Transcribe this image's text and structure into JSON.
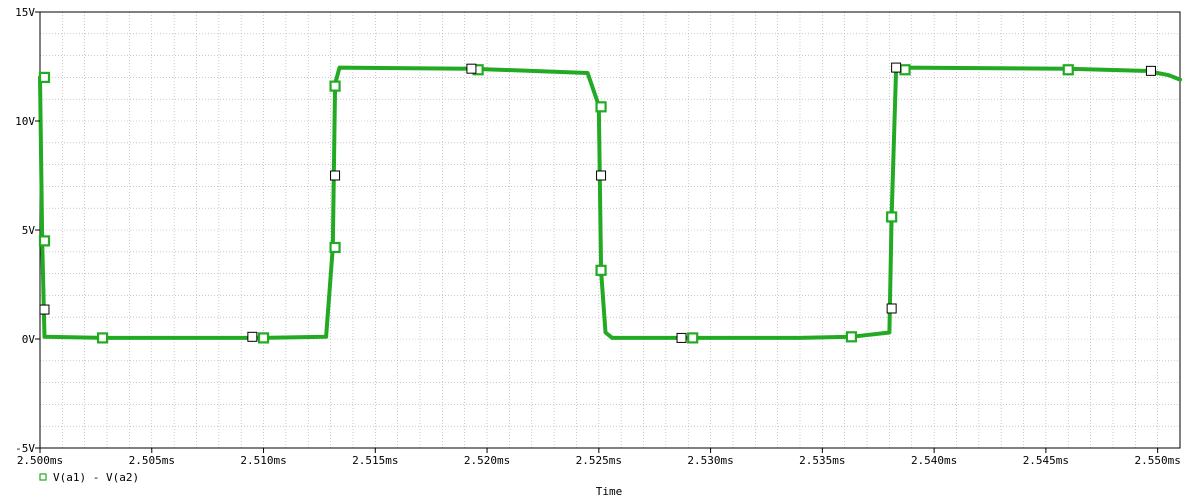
{
  "chart_data": {
    "type": "line",
    "title": "",
    "xlabel": "Time",
    "ylabel": "",
    "xlim": [
      2.5,
      2.551
    ],
    "ylim": [
      -5,
      15
    ],
    "grid": true,
    "legend_position": "bottom-left",
    "x_ticks": [
      {
        "value": 2.5,
        "label": "2.500ms"
      },
      {
        "value": 2.505,
        "label": "2.505ms"
      },
      {
        "value": 2.51,
        "label": "2.510ms"
      },
      {
        "value": 2.515,
        "label": "2.515ms"
      },
      {
        "value": 2.52,
        "label": "2.520ms"
      },
      {
        "value": 2.525,
        "label": "2.525ms"
      },
      {
        "value": 2.53,
        "label": "2.530ms"
      },
      {
        "value": 2.535,
        "label": "2.535ms"
      },
      {
        "value": 2.54,
        "label": "2.540ms"
      },
      {
        "value": 2.545,
        "label": "2.545ms"
      },
      {
        "value": 2.55,
        "label": "2.550ms"
      }
    ],
    "y_ticks": [
      {
        "value": -5,
        "label": "-5V"
      },
      {
        "value": 0,
        "label": "0V"
      },
      {
        "value": 5,
        "label": "5V"
      },
      {
        "value": 10,
        "label": "10V"
      },
      {
        "value": 15,
        "label": "15V"
      }
    ],
    "series": [
      {
        "name": "V(a1) - V(a2)",
        "color": "#22aa22",
        "x": [
          2.5,
          2.5001,
          2.5002,
          2.5028,
          2.51,
          2.5128,
          2.5131,
          2.5132,
          2.5134,
          2.5193,
          2.5245,
          2.525,
          2.5251,
          2.5253,
          2.5256,
          2.529,
          2.534,
          2.5363,
          2.538,
          2.5381,
          2.5383,
          2.5387,
          2.546,
          2.5495,
          2.5505,
          2.551
        ],
        "y": [
          12.0,
          4.5,
          0.1,
          0.05,
          0.05,
          0.1,
          4.2,
          11.7,
          12.45,
          12.4,
          12.2,
          10.7,
          3.1,
          0.3,
          0.05,
          0.05,
          0.05,
          0.1,
          0.3,
          5.6,
          12.4,
          12.45,
          12.4,
          12.3,
          12.1,
          11.9
        ],
        "markers": [
          {
            "x": 2.5002,
            "y": 12.0
          },
          {
            "x": 2.5002,
            "y": 4.5
          },
          {
            "x": 2.5028,
            "y": 0.05
          },
          {
            "x": 2.51,
            "y": 0.05
          },
          {
            "x": 2.5132,
            "y": 11.6
          },
          {
            "x": 2.5132,
            "y": 4.2
          },
          {
            "x": 2.5196,
            "y": 12.35
          },
          {
            "x": 2.5251,
            "y": 10.65
          },
          {
            "x": 2.5251,
            "y": 3.15
          },
          {
            "x": 2.5292,
            "y": 0.05
          },
          {
            "x": 2.5363,
            "y": 0.1
          },
          {
            "x": 2.5381,
            "y": 5.6
          },
          {
            "x": 2.5387,
            "y": 12.35
          },
          {
            "x": 2.546,
            "y": 12.35
          }
        ]
      },
      {
        "name": "",
        "color": "#000000",
        "type": "scatter",
        "x": [
          2.5002,
          2.5095,
          2.5132,
          2.5193,
          2.5251,
          2.5287,
          2.5381,
          2.5383,
          2.5497
        ],
        "y": [
          1.35,
          0.1,
          7.5,
          12.4,
          7.5,
          0.05,
          1.4,
          12.45,
          12.3
        ]
      }
    ]
  }
}
